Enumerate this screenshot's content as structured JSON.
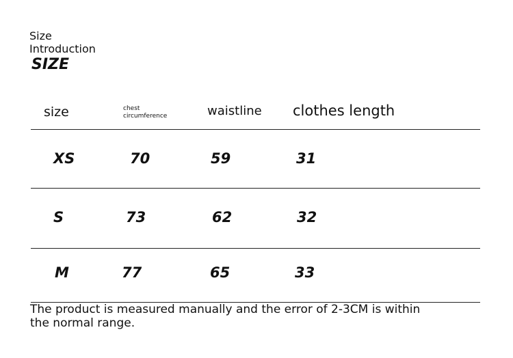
{
  "header": {
    "line1": "Size",
    "line2": "Introduction",
    "title": "SIZE"
  },
  "table": {
    "columns": [
      "size",
      "chest circumference",
      "waistline",
      "clothes length"
    ],
    "rows": [
      [
        "XS",
        "70",
        "59",
        "31"
      ],
      [
        "S",
        "73",
        "62",
        "32"
      ],
      [
        "M",
        "77",
        "65",
        "33"
      ]
    ]
  },
  "note": "The product is measured manually and the error of 2-3CM is within the normal range."
}
